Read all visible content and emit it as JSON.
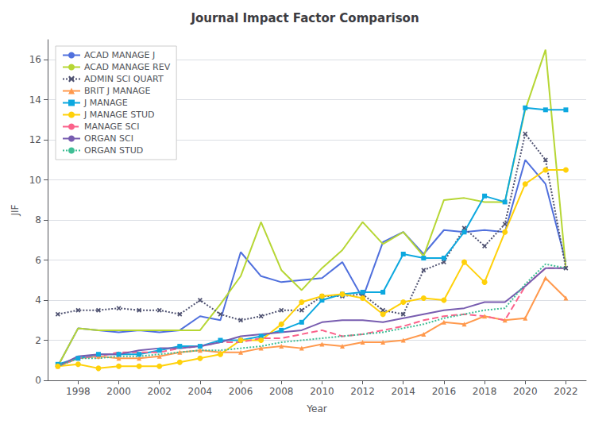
{
  "chart_data": {
    "type": "line",
    "title": "Journal Impact Factor Comparison",
    "xlabel": "Year",
    "ylabel": "JIF",
    "x": [
      1997,
      1998,
      1999,
      2000,
      2001,
      2002,
      2003,
      2004,
      2005,
      2006,
      2007,
      2008,
      2009,
      2010,
      2011,
      2012,
      2013,
      2014,
      2015,
      2016,
      2017,
      2018,
      2019,
      2020,
      2021,
      2022
    ],
    "series": [
      {
        "name": "ACAD MANAGE J",
        "line_style": "solid",
        "marker": "none",
        "values": [
          0.7,
          2.6,
          2.5,
          2.4,
          2.5,
          2.4,
          2.5,
          3.2,
          3.0,
          6.4,
          5.2,
          4.9,
          5.0,
          5.1,
          5.9,
          4.1,
          6.9,
          7.4,
          6.3,
          7.5,
          7.4,
          7.5,
          7.4,
          11.0,
          9.8,
          5.9
        ]
      },
      {
        "name": "ACAD MANAGE REV",
        "line_style": "solid",
        "marker": "none",
        "values": [
          0.7,
          2.6,
          2.5,
          2.5,
          2.5,
          2.5,
          2.5,
          2.5,
          3.8,
          5.2,
          7.9,
          5.5,
          4.5,
          5.6,
          6.5,
          7.9,
          6.8,
          7.4,
          6.2,
          9.0,
          9.1,
          8.9,
          8.9,
          13.5,
          16.5,
          5.6
        ]
      },
      {
        "name": "ADMIN SCI QUART",
        "line_style": "dotted",
        "marker": "x",
        "values": [
          3.3,
          3.5,
          3.5,
          3.6,
          3.5,
          3.5,
          3.3,
          4.0,
          3.3,
          3.0,
          3.2,
          3.5,
          3.5,
          4.2,
          4.2,
          4.3,
          3.5,
          3.3,
          5.5,
          5.9,
          7.6,
          6.7,
          7.8,
          12.3,
          11.0,
          5.6
        ]
      },
      {
        "name": "BRIT J MANAGE",
        "line_style": "solid",
        "marker": "triangle",
        "values": [
          0.7,
          1.1,
          1.2,
          1.1,
          1.1,
          1.2,
          1.4,
          1.5,
          1.4,
          1.4,
          1.6,
          1.7,
          1.6,
          1.8,
          1.7,
          1.9,
          1.9,
          2.0,
          2.3,
          2.9,
          2.8,
          3.2,
          3.0,
          3.1,
          5.1,
          4.1
        ]
      },
      {
        "name": "J MANAGE",
        "line_style": "solid",
        "marker": "square",
        "values": [
          0.8,
          1.1,
          1.3,
          1.3,
          1.3,
          1.5,
          1.7,
          1.7,
          2.0,
          2.0,
          2.2,
          2.5,
          2.9,
          4.0,
          4.3,
          4.4,
          4.4,
          6.3,
          6.1,
          6.1,
          7.4,
          9.2,
          8.9,
          13.6,
          13.5,
          13.5
        ]
      },
      {
        "name": "J MANAGE STUD",
        "line_style": "solid",
        "marker": "circle",
        "values": [
          0.7,
          0.8,
          0.6,
          0.7,
          0.7,
          0.7,
          0.9,
          1.1,
          1.3,
          2.0,
          2.0,
          2.8,
          3.9,
          4.2,
          4.3,
          4.1,
          3.3,
          3.9,
          4.1,
          4.0,
          5.9,
          4.9,
          7.4,
          9.8,
          10.5,
          10.5
        ]
      },
      {
        "name": "MANAGE SCI",
        "line_style": "dashed",
        "marker": "none",
        "values": [
          0.7,
          1.1,
          1.2,
          1.4,
          1.4,
          1.4,
          1.6,
          1.7,
          1.9,
          1.9,
          2.1,
          2.1,
          2.3,
          2.5,
          2.2,
          2.3,
          2.5,
          2.7,
          3.0,
          3.2,
          3.3,
          3.2,
          3.0,
          4.7,
          5.6,
          5.6
        ]
      },
      {
        "name": "ORGAN SCI",
        "line_style": "solid",
        "marker": "none",
        "values": [
          0.7,
          1.2,
          1.3,
          1.3,
          1.5,
          1.6,
          1.6,
          1.7,
          1.9,
          2.2,
          2.3,
          2.4,
          2.5,
          2.9,
          3.0,
          3.0,
          2.9,
          3.1,
          3.3,
          3.5,
          3.6,
          3.9,
          3.9,
          4.7,
          5.6,
          5.6
        ]
      },
      {
        "name": "ORGAN STUD",
        "line_style": "dotted",
        "marker": "none",
        "values": [
          0.7,
          1.1,
          1.1,
          1.2,
          1.2,
          1.3,
          1.4,
          1.5,
          1.5,
          1.6,
          1.7,
          1.9,
          2.0,
          2.1,
          2.2,
          2.3,
          2.4,
          2.6,
          2.8,
          3.1,
          3.3,
          3.5,
          3.6,
          4.8,
          5.8,
          5.6
        ]
      }
    ],
    "xlim": [
      1996.5,
      2023.0
    ],
    "xticks": [
      1998,
      2000,
      2002,
      2004,
      2006,
      2008,
      2010,
      2012,
      2014,
      2016,
      2018,
      2020,
      2022
    ],
    "ylim": [
      0,
      17
    ],
    "yticks": [
      0,
      2,
      4,
      6,
      8,
      10,
      12,
      14,
      16
    ],
    "grid": true,
    "legend": "upper left"
  }
}
